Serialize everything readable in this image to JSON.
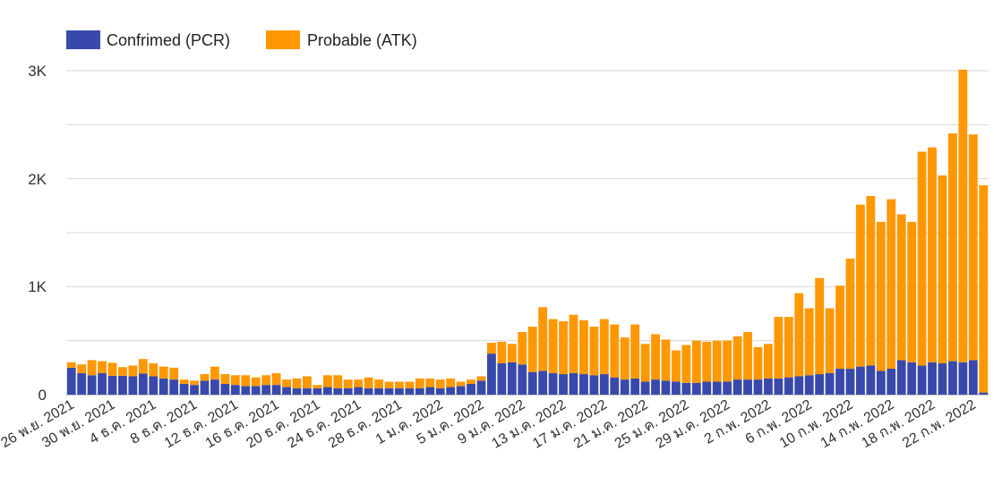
{
  "chart_data": {
    "type": "bar",
    "stacked": true,
    "legend": {
      "position": "top-left",
      "items": [
        {
          "label": "Confrimed (PCR)",
          "color": "#3949AB"
        },
        {
          "label": "Probable (ATK)",
          "color": "#FF9800"
        }
      ]
    },
    "y_ticks": [
      "0",
      "1K",
      "2K",
      "3K"
    ],
    "y_range": [
      0,
      3000
    ],
    "y_grid_step": 500,
    "x_tick_labels": [
      "26 พ.ย. 2021",
      "30 พ.ย. 2021",
      "4 ธ.ค. 2021",
      "8 ธ.ค. 2021",
      "12 ธ.ค. 2021",
      "16 ธ.ค. 2021",
      "20 ธ.ค. 2021",
      "24 ธ.ค. 2021",
      "28 ธ.ค. 2021",
      "1 ม.ค. 2022",
      "5 ม.ค. 2022",
      "9 ม.ค. 2022",
      "13 ม.ค. 2022",
      "17 ม.ค. 2022",
      "21 ม.ค. 2022",
      "25 ม.ค. 2022",
      "29 ม.ค. 2022",
      "2 ก.พ. 2022",
      "6 ก.พ. 2022",
      "10 ก.พ. 2022",
      "14 ก.พ. 2022",
      "18 ก.พ. 2022",
      "22 ก.พ. 2022"
    ],
    "x_tick_every": 4,
    "series": [
      {
        "name": "Confrimed (PCR)",
        "color": "#3949AB",
        "values": [
          250,
          200,
          180,
          200,
          175,
          175,
          170,
          195,
          170,
          150,
          140,
          100,
          90,
          130,
          140,
          100,
          90,
          80,
          80,
          90,
          90,
          70,
          60,
          60,
          60,
          70,
          60,
          60,
          70,
          60,
          60,
          60,
          60,
          60,
          60,
          70,
          60,
          70,
          80,
          100,
          130,
          380,
          290,
          300,
          280,
          210,
          220,
          200,
          190,
          200,
          190,
          180,
          190,
          160,
          140,
          150,
          120,
          140,
          130,
          120,
          110,
          110,
          120,
          120,
          120,
          140,
          140,
          140,
          150,
          150,
          160,
          170,
          180,
          190,
          200,
          240,
          240,
          260,
          270,
          220,
          240,
          320,
          300,
          270,
          300,
          290,
          310,
          300,
          320,
          20
        ]
      },
      {
        "name": "Probable (ATK)",
        "color": "#FF9800",
        "values": [
          50,
          80,
          140,
          110,
          120,
          80,
          100,
          135,
          120,
          110,
          110,
          40,
          40,
          60,
          120,
          90,
          90,
          100,
          80,
          90,
          110,
          70,
          90,
          110,
          30,
          110,
          120,
          80,
          70,
          100,
          80,
          60,
          60,
          60,
          90,
          80,
          80,
          80,
          40,
          40,
          40,
          100,
          200,
          170,
          300,
          420,
          590,
          500,
          490,
          540,
          500,
          450,
          510,
          490,
          390,
          500,
          350,
          420,
          380,
          290,
          350,
          390,
          370,
          380,
          380,
          400,
          440,
          300,
          320,
          570,
          560,
          770,
          620,
          890,
          600,
          770,
          1020,
          1500,
          1570,
          1380,
          1570,
          1350,
          1300,
          1980,
          1990,
          1740,
          2110,
          2710,
          2090,
          1920
        ]
      }
    ]
  }
}
